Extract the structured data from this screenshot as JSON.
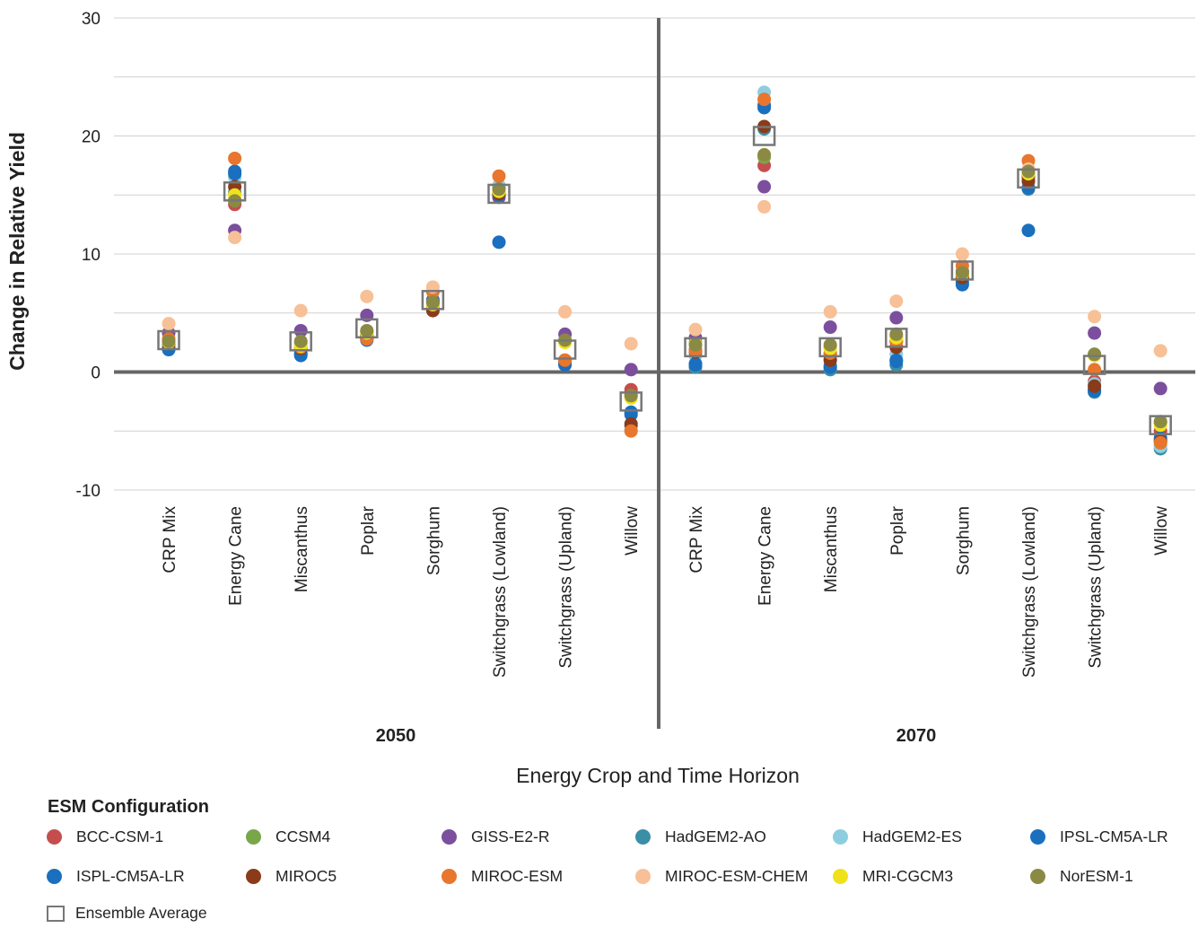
{
  "chart_data": {
    "type": "scatter",
    "xlabel": "Energy Crop and Time Horizon",
    "ylabel": "Change in Relative Yield",
    "ylim": [
      -10,
      30
    ],
    "yticks": [
      "30",
      "20",
      "10",
      "0",
      "-10"
    ],
    "grid": true,
    "groups": [
      "2050",
      "2070"
    ],
    "categories": [
      "CRP Mix",
      "Energy Cane",
      "Miscanthus",
      "Poplar",
      "Sorghum",
      "Switchgrass (Lowland)",
      "Switchgrass (Upland)",
      "Willow"
    ],
    "legend_title": "ESM Configuration",
    "legend_position": "bottom",
    "series": [
      {
        "name": "BCC-CSM-1",
        "color": "#c44e4e",
        "2050": [
          2.3,
          14.2,
          1.8,
          3.0,
          5.6,
          15.2,
          1.0,
          -1.5
        ],
        "2070": [
          1.9,
          17.5,
          1.5,
          2.6,
          8.2,
          16.5,
          -0.8,
          -5.0
        ]
      },
      {
        "name": "CCSM4",
        "color": "#78a74a",
        "2050": [
          2.6,
          14.6,
          2.4,
          3.4,
          5.8,
          15.5,
          2.6,
          -2.0
        ],
        "2070": [
          2.5,
          18.2,
          2.1,
          3.0,
          8.4,
          16.9,
          1.5,
          -4.3
        ]
      },
      {
        "name": "GISS-E2-R",
        "color": "#7b4f9d",
        "2050": [
          3.3,
          12.0,
          3.5,
          4.8,
          5.9,
          14.8,
          3.2,
          0.2
        ],
        "2070": [
          2.9,
          15.7,
          3.8,
          4.6,
          8.5,
          16.6,
          3.3,
          -1.4
        ]
      },
      {
        "name": "HadGEM2-AO",
        "color": "#3a8fa6",
        "2050": [
          2.0,
          15.2,
          1.6,
          2.9,
          5.9,
          15.6,
          0.7,
          -4.6
        ],
        "2070": [
          0.4,
          20.6,
          0.2,
          0.6,
          8.0,
          15.5,
          -1.7,
          -6.5
        ]
      },
      {
        "name": "HadGEM2-ES",
        "color": "#8dcde0",
        "2050": [
          2.1,
          16.5,
          1.7,
          3.0,
          6.0,
          15.8,
          0.8,
          -4.9
        ],
        "2070": [
          1.4,
          23.7,
          1.1,
          1.5,
          8.1,
          16.0,
          -1.0,
          -6.3
        ]
      },
      {
        "name": "IPSL-CM5A-LR",
        "color": "#1a6fbf",
        "2050": [
          1.9,
          17.0,
          1.4,
          2.7,
          6.1,
          11.0,
          0.6,
          -3.4
        ],
        "2070": [
          0.6,
          22.6,
          0.4,
          0.9,
          7.4,
          12.0,
          -1.6,
          -5.6
        ]
      },
      {
        "name": "ISPL-CM5A-LR",
        "color": "#1a6fbf",
        "2050": [
          2.0,
          16.8,
          1.5,
          2.8,
          6.0,
          15.0,
          0.7,
          -3.6
        ],
        "2070": [
          0.7,
          22.4,
          0.5,
          1.0,
          7.6,
          15.6,
          -1.5,
          -5.8
        ]
      },
      {
        "name": "MIROC5",
        "color": "#8a3b1a",
        "2050": [
          2.4,
          15.7,
          2.0,
          3.1,
          5.2,
          15.1,
          1.0,
          -4.4
        ],
        "2070": [
          1.7,
          20.8,
          1.0,
          2.1,
          8.0,
          16.2,
          -1.2,
          -5.9
        ]
      },
      {
        "name": "MIROC-ESM",
        "color": "#e8762c",
        "2050": [
          2.8,
          18.1,
          2.1,
          2.8,
          6.8,
          16.6,
          1.0,
          -5.0
        ],
        "2070": [
          1.8,
          23.1,
          1.6,
          2.6,
          9.0,
          17.9,
          0.2,
          -6.0
        ]
      },
      {
        "name": "MIROC-ESM-CHEM",
        "color": "#f7c096",
        "2050": [
          4.1,
          11.4,
          5.2,
          6.4,
          7.2,
          15.4,
          5.1,
          2.4
        ],
        "2070": [
          3.6,
          14.0,
          5.1,
          6.0,
          10.0,
          17.2,
          4.7,
          1.8
        ]
      },
      {
        "name": "MRI-CGCM3",
        "color": "#f0e21a",
        "2050": [
          2.5,
          15.0,
          2.2,
          3.3,
          5.7,
          15.3,
          2.5,
          -2.2
        ],
        "2070": [
          2.4,
          18.4,
          2.0,
          2.9,
          8.3,
          16.8,
          1.4,
          -4.5
        ]
      },
      {
        "name": "NorESM-1",
        "color": "#8b8a44",
        "2050": [
          2.6,
          14.5,
          2.6,
          3.5,
          5.9,
          15.5,
          2.7,
          -2.0
        ],
        "2070": [
          2.3,
          18.4,
          2.3,
          3.2,
          8.4,
          17.0,
          1.5,
          -4.2
        ]
      }
    ],
    "ensemble": {
      "name": "Ensemble Average",
      "2050": [
        2.7,
        15.3,
        2.6,
        3.7,
        6.1,
        15.1,
        1.9,
        -2.5
      ],
      "2070": [
        2.1,
        20.0,
        2.1,
        2.9,
        8.6,
        16.4,
        0.6,
        -4.5
      ]
    }
  }
}
